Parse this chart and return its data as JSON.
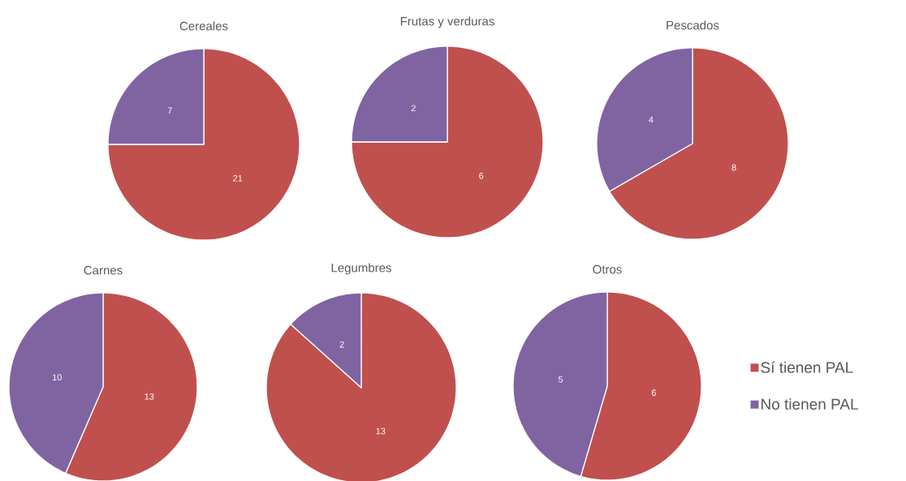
{
  "chart_data": [
    {
      "type": "pie",
      "title": "Cereales",
      "categories": [
        null,
        null
      ],
      "values": [
        21,
        7
      ],
      "colors": [
        "#c0504d",
        "#8064a2"
      ],
      "data_labels": true
    },
    {
      "type": "pie",
      "title": "Frutas y verduras",
      "categories": [
        null,
        null
      ],
      "values": [
        6,
        2
      ],
      "colors": [
        "#c0504d",
        "#8064a2"
      ],
      "data_labels": true
    },
    {
      "type": "pie",
      "title": "Pescados",
      "categories": [
        null,
        null
      ],
      "values": [
        8,
        4
      ],
      "colors": [
        "#c0504d",
        "#8064a2"
      ],
      "data_labels": true
    },
    {
      "type": "pie",
      "title": "Carnes",
      "categories": [
        null,
        null
      ],
      "values": [
        13,
        10
      ],
      "colors": [
        "#c0504d",
        "#8064a2"
      ],
      "data_labels": true
    },
    {
      "type": "pie",
      "title": "Legumbres",
      "categories": [
        null,
        null
      ],
      "values": [
        13,
        2
      ],
      "colors": [
        "#c0504d",
        "#8064a2"
      ],
      "data_labels": true
    },
    {
      "type": "pie",
      "title": "Otros",
      "categories": [
        "Sí tienen PAL",
        "No tienen PAL"
      ],
      "values": [
        6,
        5
      ],
      "colors": [
        "#c0504d",
        "#8064a2"
      ],
      "data_labels": true,
      "legend": "right"
    }
  ]
}
